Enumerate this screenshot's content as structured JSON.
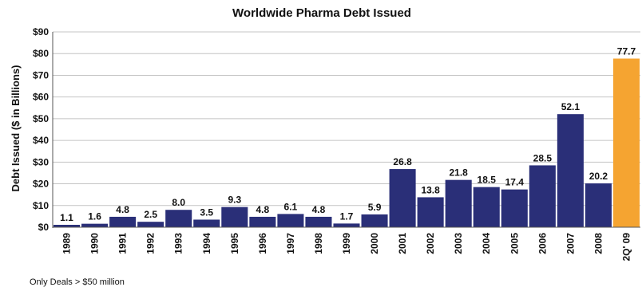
{
  "chart_data": {
    "type": "bar",
    "title": "Worldwide Pharma Debt Issued",
    "ylabel": "Debt Issued ($ in Billions)",
    "xlabel": "",
    "footnote": "Only Deals > $50 million",
    "ylim": [
      0,
      90
    ],
    "yticks": [
      "$0",
      "$10",
      "$20",
      "$30",
      "$40",
      "$50",
      "$60",
      "$70",
      "$80",
      "$90"
    ],
    "grid": true,
    "categories": [
      "1989",
      "1990",
      "1991",
      "1992",
      "1993",
      "1994",
      "1995",
      "1996",
      "1997",
      "1998",
      "1999",
      "2000",
      "2001",
      "2002",
      "2003",
      "2004",
      "2005",
      "2006",
      "2007",
      "2008",
      "2Q' 09"
    ],
    "values": [
      1.1,
      1.6,
      4.8,
      2.5,
      8.0,
      3.5,
      9.3,
      4.8,
      6.1,
      4.8,
      1.7,
      5.9,
      26.8,
      13.8,
      21.8,
      18.5,
      17.4,
      28.5,
      52.1,
      20.2,
      77.7
    ],
    "labels": [
      "1.1",
      "1.6",
      "4.8",
      "2.5",
      "8.0",
      "3.5",
      "9.3",
      "4.8",
      "6.1",
      "4.8",
      "1.7",
      "5.9",
      "26.8",
      "13.8",
      "21.8",
      "18.5",
      "17.4",
      "28.5",
      "52.1",
      "20.2",
      "77.7"
    ],
    "colors": {
      "bar": "#2a2f78",
      "highlight": "#f5a431"
    },
    "highlight_index": 20
  }
}
